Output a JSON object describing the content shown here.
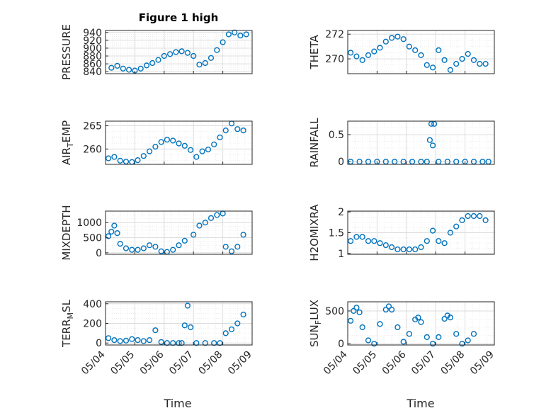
{
  "figure": {
    "title": "Figure 1 high",
    "xlabel": "Time",
    "date_ticks": [
      "05/04",
      "05/05",
      "05/06",
      "05/07",
      "05/08",
      "05/09"
    ],
    "marker_color": "#0072BD"
  },
  "chart_data": [
    {
      "type": "scatter",
      "title": "Figure 1 high",
      "ylabel": "PRESSURE",
      "ylabel_sub": null,
      "ylim": [
        835,
        945
      ],
      "yticks": [
        840,
        860,
        880,
        900,
        920,
        940
      ],
      "xlim": [
        "05/04",
        "05/09"
      ],
      "grid": true,
      "x": [
        "05/04 04:48",
        "05/04 09:36",
        "05/04 14:24",
        "05/04 19:12",
        "05/05 00:00",
        "05/05 04:48",
        "05/05 09:36",
        "05/05 14:24",
        "05/05 19:12",
        "05/06 00:00",
        "05/06 04:48",
        "05/06 09:36",
        "05/06 14:24",
        "05/06 19:12",
        "05/07 00:00",
        "05/07 04:48",
        "05/07 09:36",
        "05/07 14:24",
        "05/07 19:12",
        "05/08 00:00",
        "05/08 04:48",
        "05/08 09:36",
        "05/08 14:24",
        "05/08 19:12"
      ],
      "values": [
        850,
        855,
        848,
        845,
        843,
        848,
        856,
        862,
        870,
        880,
        885,
        890,
        892,
        888,
        880,
        858,
        862,
        875,
        895,
        915,
        935,
        940,
        932,
        935
      ]
    },
    {
      "type": "scatter",
      "title": "",
      "ylabel": "THETA",
      "ylabel_sub": null,
      "ylim": [
        268.8,
        272.3
      ],
      "yticks": [
        270,
        272
      ],
      "xlim": [
        "05/04",
        "05/09"
      ],
      "grid": true,
      "x": [
        "05/04 02:24",
        "05/04 07:12",
        "05/04 12:00",
        "05/04 16:48",
        "05/04 21:36",
        "05/05 02:24",
        "05/05 07:12",
        "05/05 12:00",
        "05/05 16:48",
        "05/05 21:36",
        "05/06 02:24",
        "05/06 07:12",
        "05/06 12:00",
        "05/06 16:48",
        "05/06 21:36",
        "05/07 02:24",
        "05/07 07:12",
        "05/07 12:00",
        "05/07 16:48",
        "05/07 21:36",
        "05/08 02:24",
        "05/08 07:12",
        "05/08 12:00",
        "05/08 16:48"
      ],
      "values": [
        270.5,
        270.2,
        269.9,
        270.3,
        270.6,
        270.9,
        271.4,
        271.7,
        271.8,
        271.6,
        271.0,
        270.7,
        270.3,
        269.5,
        269.3,
        270.7,
        269.9,
        269.1,
        269.6,
        270.0,
        270.4,
        269.9,
        269.6,
        269.6
      ]
    },
    {
      "type": "scatter",
      "title": "",
      "ylabel": "AIR",
      "ylabel_sub": "T",
      "ylabel_rest": "EMP",
      "ylim": [
        256.7,
        266
      ],
      "yticks": [
        260,
        265
      ],
      "xlim": [
        "05/04",
        "05/09"
      ],
      "grid": true,
      "x": [
        "05/04 02:24",
        "05/04 07:12",
        "05/04 12:00",
        "05/04 16:48",
        "05/04 21:36",
        "05/05 02:24",
        "05/05 07:12",
        "05/05 12:00",
        "05/05 16:48",
        "05/05 21:36",
        "05/06 02:24",
        "05/06 07:12",
        "05/06 12:00",
        "05/06 16:48",
        "05/06 21:36",
        "05/07 02:24",
        "05/07 07:12",
        "05/07 12:00",
        "05/07 16:48",
        "05/07 21:36",
        "05/08 02:24",
        "05/08 07:12",
        "05/08 12:00",
        "05/08 16:48"
      ],
      "values": [
        258.0,
        258.3,
        257.5,
        257.3,
        257.2,
        257.6,
        258.5,
        259.5,
        260.5,
        261.5,
        262.0,
        261.8,
        261.2,
        260.7,
        259.8,
        258.3,
        259.5,
        259.9,
        261.0,
        262.5,
        264.0,
        265.5,
        264.3,
        264.0
      ]
    },
    {
      "type": "scatter",
      "title": "",
      "ylabel": "RAINFALL",
      "ylabel_sub": null,
      "ylim": [
        -0.05,
        0.75
      ],
      "yticks": [
        0,
        0.5
      ],
      "xlim": [
        "05/04",
        "05/09"
      ],
      "grid": true,
      "x": [
        "05/04 02:24",
        "05/04 09:36",
        "05/04 16:48",
        "05/05 00:00",
        "05/05 07:12",
        "05/05 14:24",
        "05/05 21:36",
        "05/06 04:48",
        "05/06 12:00",
        "05/06 16:48",
        "05/06 19:12",
        "05/06 20:24",
        "05/06 21:36",
        "05/06 22:48",
        "05/07 02:24",
        "05/07 09:36",
        "05/07 16:48",
        "05/08 00:00",
        "05/08 07:12",
        "05/08 14:24",
        "05/08 19:12"
      ],
      "values": [
        0,
        0,
        0,
        0,
        0,
        0,
        0,
        0,
        0,
        0,
        0.4,
        0.7,
        0.3,
        0.7,
        0,
        0,
        0,
        0,
        0,
        0,
        0
      ]
    },
    {
      "type": "scatter",
      "title": "",
      "ylabel": "MIXDEPTH",
      "ylabel_sub": null,
      "ylim": [
        -50,
        1380
      ],
      "yticks": [
        0,
        500,
        1000
      ],
      "xlim": [
        "05/04",
        "05/09"
      ],
      "grid": true,
      "x": [
        "05/04 02:24",
        "05/04 04:48",
        "05/04 07:12",
        "05/04 09:36",
        "05/04 12:00",
        "05/04 16:48",
        "05/04 21:36",
        "05/05 02:24",
        "05/05 07:12",
        "05/05 12:00",
        "05/05 16:48",
        "05/05 21:36",
        "05/06 02:24",
        "05/06 07:12",
        "05/06 12:00",
        "05/06 16:48",
        "05/07 00:00",
        "05/07 04:48",
        "05/07 09:36",
        "05/07 14:24",
        "05/07 19:12",
        "05/08 00:00",
        "05/08 02:24",
        "05/08 07:12",
        "05/08 12:00",
        "05/08 16:48"
      ],
      "values": [
        550,
        700,
        900,
        650,
        300,
        150,
        100,
        100,
        150,
        250,
        200,
        50,
        30,
        100,
        250,
        400,
        600,
        900,
        1000,
        1150,
        1250,
        1300,
        200,
        50,
        200,
        600
      ]
    },
    {
      "type": "scatter",
      "title": "",
      "ylabel": "H2OMIXRA",
      "ylabel_sub": null,
      "ylim": [
        0.98,
        2.02
      ],
      "yticks": [
        1,
        1.5,
        2
      ],
      "xlim": [
        "05/04",
        "05/09"
      ],
      "grid": true,
      "x": [
        "05/04 02:24",
        "05/04 07:12",
        "05/04 12:00",
        "05/04 16:48",
        "05/04 21:36",
        "05/05 02:24",
        "05/05 07:12",
        "05/05 12:00",
        "05/05 16:48",
        "05/05 21:36",
        "05/06 02:24",
        "05/06 07:12",
        "05/06 12:00",
        "05/06 16:48",
        "05/06 21:36",
        "05/07 02:24",
        "05/07 07:12",
        "05/07 12:00",
        "05/07 16:48",
        "05/07 21:36",
        "05/08 02:24",
        "05/08 07:12",
        "05/08 12:00",
        "05/08 16:48"
      ],
      "values": [
        1.3,
        1.4,
        1.4,
        1.3,
        1.3,
        1.25,
        1.2,
        1.15,
        1.1,
        1.1,
        1.1,
        1.1,
        1.15,
        1.3,
        1.55,
        1.3,
        1.25,
        1.5,
        1.65,
        1.8,
        1.9,
        1.9,
        1.9,
        1.8
      ]
    },
    {
      "type": "scatter",
      "title": "",
      "ylabel": "TERR",
      "ylabel_sub": "M",
      "ylabel_rest": "SL",
      "ylim": [
        -20,
        420
      ],
      "yticks": [
        0,
        200,
        400
      ],
      "xlim": [
        "05/04",
        "05/09"
      ],
      "grid": true,
      "x": [
        "05/04 02:24",
        "05/04 07:12",
        "05/04 12:00",
        "05/04 16:48",
        "05/04 21:36",
        "05/05 02:24",
        "05/05 07:12",
        "05/05 12:00",
        "05/05 16:48",
        "05/05 21:36",
        "05/06 02:24",
        "05/06 07:12",
        "05/06 12:00",
        "05/06 14:24",
        "05/06 16:48",
        "05/06 19:12",
        "05/06 21:36",
        "05/07 02:24",
        "05/07 09:36",
        "05/07 16:48",
        "05/07 21:36",
        "05/08 02:24",
        "05/08 07:12",
        "05/08 12:00",
        "05/08 16:48"
      ],
      "values": [
        50,
        30,
        20,
        25,
        40,
        30,
        20,
        30,
        130,
        10,
        0,
        0,
        0,
        0,
        180,
        380,
        160,
        0,
        0,
        0,
        0,
        100,
        140,
        200,
        290
      ]
    },
    {
      "type": "scatter",
      "title": "",
      "ylabel": "SUN",
      "ylabel_sub": "F",
      "ylabel_rest": "LUX",
      "ylim": [
        -20,
        640
      ],
      "yticks": [
        0,
        500
      ],
      "xlim": [
        "05/04",
        "05/09"
      ],
      "grid": true,
      "x": [
        "05/04 02:24",
        "05/04 04:48",
        "05/04 07:12",
        "05/04 09:36",
        "05/04 12:00",
        "05/04 16:48",
        "05/04 21:36",
        "05/05 02:24",
        "05/05 07:12",
        "05/05 09:36",
        "05/05 12:00",
        "05/05 16:48",
        "05/05 21:36",
        "05/06 02:24",
        "05/06 07:12",
        "05/06 09:36",
        "05/06 12:00",
        "05/06 16:48",
        "05/06 21:36",
        "05/07 02:24",
        "05/07 07:12",
        "05/07 09:36",
        "05/07 12:00",
        "05/07 16:48",
        "05/07 21:36",
        "05/08 02:24",
        "05/08 07:12"
      ],
      "values": [
        350,
        500,
        550,
        480,
        250,
        50,
        0,
        300,
        520,
        570,
        520,
        250,
        30,
        150,
        370,
        400,
        330,
        100,
        0,
        100,
        380,
        430,
        400,
        150,
        0,
        50,
        150
      ]
    }
  ]
}
